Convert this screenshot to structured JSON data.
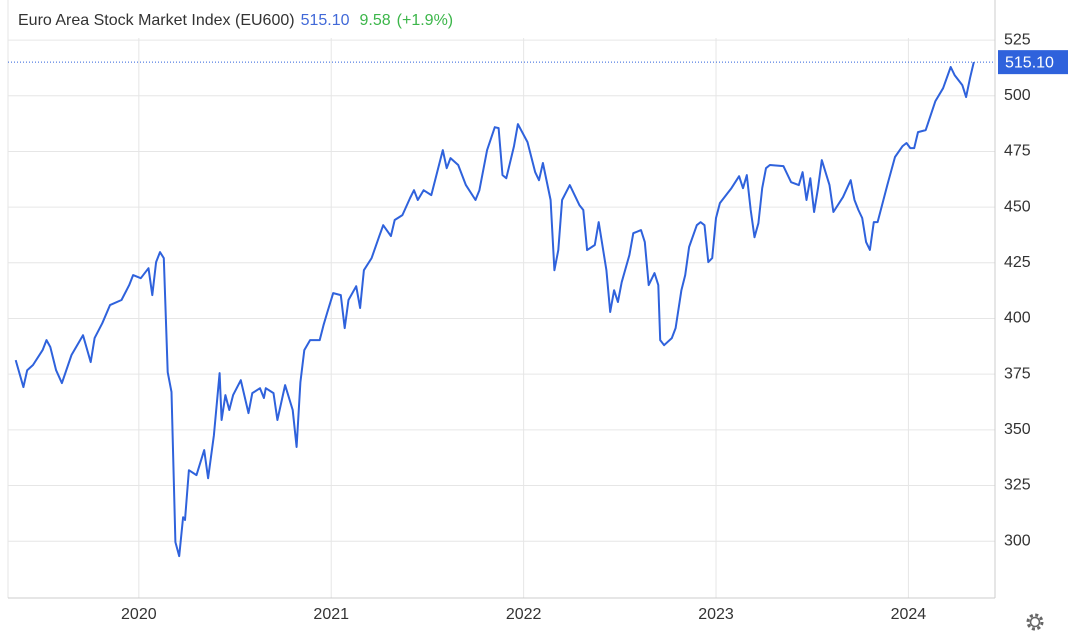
{
  "chart_data": {
    "type": "line",
    "title": "Euro Area Stock Market Index (EU600)",
    "last_value_label": "515.10",
    "change": "9.58",
    "change_percent": "(+1.9%)",
    "x": [
      2019.36,
      2019.4,
      2019.42,
      2019.45,
      2019.5,
      2019.52,
      2019.54,
      2019.57,
      2019.6,
      2019.65,
      2019.71,
      2019.75,
      2019.77,
      2019.81,
      2019.85,
      2019.91,
      2019.95,
      2019.97,
      2020.01,
      2020.05,
      2020.07,
      2020.09,
      2020.11,
      2020.13,
      2020.15,
      2020.17,
      2020.19,
      2020.21,
      2020.23,
      2020.24,
      2020.26,
      2020.3,
      2020.34,
      2020.36,
      2020.39,
      2020.42,
      2020.43,
      2020.45,
      2020.47,
      2020.49,
      2020.53,
      2020.57,
      2020.59,
      2020.63,
      2020.65,
      2020.66,
      2020.7,
      2020.72,
      2020.76,
      2020.8,
      2020.82,
      2020.84,
      2020.86,
      2020.89,
      2020.94,
      2020.96,
      2020.98,
      2021.01,
      2021.05,
      2021.07,
      2021.09,
      2021.13,
      2021.15,
      2021.17,
      2021.21,
      2021.25,
      2021.27,
      2021.31,
      2021.33,
      2021.37,
      2021.41,
      2021.43,
      2021.45,
      2021.48,
      2021.52,
      2021.54,
      2021.58,
      2021.6,
      2021.62,
      2021.66,
      2021.7,
      2021.75,
      2021.77,
      2021.81,
      2021.85,
      2021.87,
      2021.89,
      2021.91,
      2021.95,
      2021.97,
      2022.02,
      2022.06,
      2022.08,
      2022.1,
      2022.14,
      2022.16,
      2022.18,
      2022.2,
      2022.24,
      2022.29,
      2022.31,
      2022.33,
      2022.37,
      2022.39,
      2022.43,
      2022.45,
      2022.47,
      2022.49,
      2022.51,
      2022.55,
      2022.57,
      2022.61,
      2022.63,
      2022.65,
      2022.68,
      2022.7,
      2022.71,
      2022.73,
      2022.77,
      2022.79,
      2022.82,
      2022.84,
      2022.86,
      2022.9,
      2022.92,
      2022.94,
      2022.96,
      2022.98,
      2023.0,
      2023.02,
      2023.06,
      2023.08,
      2023.12,
      2023.14,
      2023.16,
      2023.18,
      2023.2,
      2023.22,
      2023.24,
      2023.26,
      2023.28,
      2023.35,
      2023.39,
      2023.43,
      2023.45,
      2023.47,
      2023.49,
      2023.51,
      2023.53,
      2023.55,
      2023.59,
      2023.61,
      2023.66,
      2023.7,
      2023.72,
      2023.74,
      2023.76,
      2023.78,
      2023.8,
      2023.82,
      2023.84,
      2023.89,
      2023.93,
      2023.97,
      2023.99,
      2024.01,
      2024.03,
      2024.05,
      2024.09,
      2024.14,
      2024.18,
      2024.22,
      2024.24,
      2024.28,
      2024.3,
      2024.32,
      2024.34
    ],
    "series": [
      {
        "name": "EU600",
        "color": "#2f62dc",
        "values": [
          381.3,
          369.2,
          376.8,
          379.1,
          385.8,
          390.3,
          387.2,
          376.8,
          371.0,
          383.6,
          392.5,
          380.4,
          391.2,
          397.9,
          406.0,
          408.3,
          415.0,
          419.5,
          418.1,
          422.6,
          410.5,
          425.3,
          429.8,
          427.1,
          375.9,
          367.0,
          299.6,
          293.3,
          310.8,
          309.5,
          331.9,
          329.7,
          340.9,
          328.3,
          347.6,
          375.5,
          354.4,
          365.6,
          358.9,
          365.6,
          372.3,
          357.5,
          366.5,
          368.7,
          364.3,
          368.7,
          366.5,
          354.4,
          370.1,
          358.9,
          342.3,
          371.4,
          385.8,
          390.3,
          390.3,
          397.0,
          402.9,
          411.4,
          410.5,
          395.7,
          408.3,
          414.5,
          404.7,
          421.7,
          427.1,
          437.0,
          441.9,
          437.0,
          444.2,
          446.4,
          454.1,
          457.6,
          453.2,
          457.6,
          455.4,
          462.1,
          475.6,
          467.5,
          472.0,
          468.9,
          459.9,
          453.2,
          457.6,
          475.6,
          485.9,
          485.5,
          464.4,
          463.0,
          477.4,
          487.3,
          479.2,
          465.7,
          462.1,
          469.8,
          453.2,
          421.7,
          430.7,
          453.2,
          459.9,
          450.9,
          448.7,
          430.7,
          433.0,
          443.3,
          421.7,
          402.9,
          412.7,
          407.4,
          416.3,
          428.5,
          438.3,
          439.7,
          434.3,
          415.0,
          420.4,
          415.0,
          390.3,
          388.0,
          391.2,
          395.7,
          412.7,
          419.5,
          432.1,
          441.9,
          443.3,
          441.9,
          425.3,
          427.1,
          445.1,
          451.8,
          456.3,
          458.5,
          463.9,
          458.5,
          464.4,
          448.7,
          436.5,
          442.8,
          458.5,
          467.5,
          468.9,
          468.4,
          461.2,
          459.9,
          465.7,
          453.2,
          463.0,
          447.8,
          458.5,
          471.1,
          459.9,
          447.8,
          454.5,
          462.1,
          453.2,
          448.7,
          445.1,
          434.3,
          430.8,
          443.3,
          443.3,
          459.9,
          472.5,
          477.4,
          478.8,
          476.5,
          476.5,
          483.7,
          484.6,
          497.6,
          503.4,
          512.9,
          509.3,
          504.8,
          499.4,
          507.9,
          515.1
        ]
      }
    ],
    "xlim": [
      2019.32,
      2024.45
    ],
    "xticks": [
      2020,
      2021,
      2022,
      2023,
      2024
    ],
    "ylim": [
      274.5,
      543
    ],
    "yticks": [
      300,
      325,
      350,
      375,
      400,
      425,
      450,
      475,
      500,
      525
    ],
    "grid": true
  }
}
